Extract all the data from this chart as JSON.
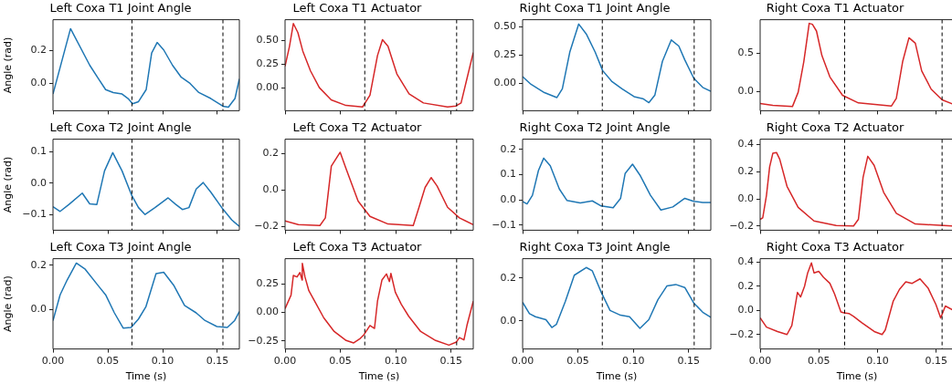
{
  "chart_data": [
    {
      "type": "line",
      "title": "Left Coxa T1 Joint Angle",
      "ylabel": "Angle (rad)",
      "xlim": [
        0,
        0.17
      ],
      "xticks": [
        {
          "value": 0,
          "label": null
        },
        {
          "value": 0.05,
          "label": null
        },
        {
          "value": 0.1,
          "label": null
        },
        {
          "value": 0.15,
          "label": null
        }
      ],
      "ylim": [
        -0.17,
        0.39
      ],
      "yticks": [
        {
          "value": 0,
          "label": "0.0"
        },
        {
          "value": 0.2,
          "label": "0.2"
        }
      ],
      "tick_labels": "y",
      "ref_lines": [
        {
          "axis": "x",
          "value": 0.072,
          "color": "#000000",
          "line_style": "dashed"
        },
        {
          "axis": "x",
          "value": 0.155,
          "color": "#000000",
          "line_style": "dashed"
        }
      ],
      "series": [
        {
          "color": "#1f77b4",
          "x": [
            0,
            0.016,
            0.0335,
            0.0415,
            0.048,
            0.055,
            0.063,
            0.0685,
            0.0726,
            0.078,
            0.085,
            0.09,
            0.095,
            0.101,
            0.109,
            0.117,
            0.125,
            0.133,
            0.144,
            0.155,
            0.16,
            0.166,
            0.17
          ],
          "values": [
            -0.067,
            0.335,
            0.11,
            0.026,
            -0.04,
            -0.058,
            -0.067,
            -0.095,
            -0.127,
            -0.114,
            -0.04,
            0.185,
            0.25,
            0.204,
            0.11,
            0.036,
            -0.002,
            -0.058,
            -0.095,
            -0.142,
            -0.148,
            -0.095,
            0.026
          ]
        }
      ]
    },
    {
      "type": "line",
      "title": "Left Coxa T1 Actuator",
      "xlim": [
        0,
        0.17
      ],
      "xticks": [
        {
          "value": 0,
          "label": null
        },
        {
          "value": 0.05,
          "label": null
        },
        {
          "value": 0.1,
          "label": null
        },
        {
          "value": 0.15,
          "label": null
        }
      ],
      "ylim": [
        -0.24,
        0.72
      ],
      "yticks": [
        {
          "value": 0,
          "label": "0.00"
        },
        {
          "value": 0.25,
          "label": "0.25"
        },
        {
          "value": 0.5,
          "label": "0.50"
        }
      ],
      "tick_labels": "y",
      "ref_lines": [
        {
          "axis": "x",
          "value": 0.072,
          "color": "#000000",
          "line_style": "dashed"
        },
        {
          "axis": "x",
          "value": 0.155,
          "color": "#000000",
          "line_style": "dashed"
        }
      ],
      "series": [
        {
          "color": "#d62728",
          "x": [
            0,
            0.004,
            0.0075,
            0.0116,
            0.016,
            0.023,
            0.031,
            0.0417,
            0.055,
            0.07,
            0.0767,
            0.0835,
            0.088,
            0.093,
            0.101,
            0.112,
            0.125,
            0.1468,
            0.1543,
            0.159,
            0.164,
            0.17
          ],
          "values": [
            0.229,
            0.439,
            0.68,
            0.584,
            0.39,
            0.18,
            0.003,
            -0.126,
            -0.184,
            -0.2,
            -0.077,
            0.342,
            0.51,
            0.439,
            0.148,
            -0.061,
            -0.158,
            -0.2,
            -0.19,
            -0.158,
            0.084,
            0.374
          ]
        }
      ]
    },
    {
      "type": "line",
      "title": "Right Coxa T1 Joint Angle",
      "xlim": [
        0,
        0.17
      ],
      "xticks": [
        {
          "value": 0,
          "label": null
        },
        {
          "value": 0.05,
          "label": null
        },
        {
          "value": 0.1,
          "label": null
        },
        {
          "value": 0.15,
          "label": null
        }
      ],
      "ylim": [
        -0.24,
        0.56
      ],
      "yticks": [
        {
          "value": 0,
          "label": "0.00"
        },
        {
          "value": 0.25,
          "label": "0.25"
        },
        {
          "value": 0.5,
          "label": "0.50"
        }
      ],
      "tick_labels": "y",
      "ref_lines": [
        {
          "axis": "x",
          "value": 0.072,
          "color": "#000000",
          "line_style": "dashed"
        },
        {
          "axis": "x",
          "value": 0.155,
          "color": "#000000",
          "line_style": "dashed"
        }
      ],
      "series": [
        {
          "color": "#1f77b4",
          "x": [
            0,
            0.0076,
            0.0197,
            0.031,
            0.0359,
            0.0426,
            0.0507,
            0.0575,
            0.0656,
            0.0723,
            0.0804,
            0.0898,
            0.1007,
            0.1087,
            0.1141,
            0.1195,
            0.1263,
            0.1343,
            0.1411,
            0.1465,
            0.1546,
            0.1627,
            0.17
          ],
          "values": [
            0.059,
            -0.008,
            -0.081,
            -0.124,
            -0.048,
            0.274,
            0.522,
            0.435,
            0.274,
            0.113,
            0.019,
            -0.048,
            -0.116,
            -0.134,
            -0.169,
            -0.102,
            0.194,
            0.382,
            0.328,
            0.207,
            0.046,
            -0.035,
            -0.07
          ]
        }
      ]
    },
    {
      "type": "line",
      "title": "Right Coxa T1 Actuator",
      "xlim": [
        0,
        0.165
      ],
      "xticks": [
        {
          "value": 0,
          "label": null
        },
        {
          "value": 0.05,
          "label": null
        },
        {
          "value": 0.1,
          "label": null
        },
        {
          "value": 0.15,
          "label": null
        }
      ],
      "ylim": [
        -0.25,
        0.94
      ],
      "yticks": [
        {
          "value": 0,
          "label": "0.0"
        },
        {
          "value": 0.5,
          "label": "0.5"
        }
      ],
      "tick_labels": "y",
      "ref_lines": [
        {
          "axis": "x",
          "value": 0.072,
          "color": "#000000",
          "line_style": "dashed"
        },
        {
          "axis": "x",
          "value": 0.155,
          "color": "#000000",
          "line_style": "dashed"
        }
      ],
      "series": [
        {
          "color": "#d62728",
          "x": [
            0,
            0.0108,
            0.0275,
            0.0324,
            0.0372,
            0.0418,
            0.0445,
            0.048,
            0.0526,
            0.0594,
            0.0702,
            0.0837,
            0.1119,
            0.116,
            0.1214,
            0.1268,
            0.1322,
            0.1376,
            0.1457,
            0.1551,
            0.165
          ],
          "values": [
            -0.156,
            -0.18,
            -0.196,
            -0.008,
            0.392,
            0.892,
            0.88,
            0.792,
            0.472,
            0.192,
            -0.048,
            -0.148,
            -0.188,
            -0.088,
            0.392,
            0.704,
            0.632,
            0.272,
            0.032,
            -0.108,
            -0.168
          ]
        }
      ]
    },
    {
      "type": "line",
      "title": "Left Coxa T2 Joint Angle",
      "ylabel": "Angle (rad)",
      "xlim": [
        0,
        0.17
      ],
      "xticks": [
        {
          "value": 0,
          "label": null
        },
        {
          "value": 0.05,
          "label": null
        },
        {
          "value": 0.1,
          "label": null
        },
        {
          "value": 0.15,
          "label": null
        }
      ],
      "ylim": [
        -0.15,
        0.14
      ],
      "yticks": [
        {
          "value": -0.1,
          "label": "−0.1"
        },
        {
          "value": 0,
          "label": "0.0"
        },
        {
          "value": 0.1,
          "label": "0.1"
        }
      ],
      "tick_labels": "y",
      "ref_lines": [
        {
          "axis": "x",
          "value": 0.072,
          "color": "#000000",
          "line_style": "dashed"
        },
        {
          "axis": "x",
          "value": 0.155,
          "color": "#000000",
          "line_style": "dashed"
        }
      ],
      "series": [
        {
          "color": "#1f77b4",
          "x": [
            0,
            0.0065,
            0.0146,
            0.0267,
            0.0335,
            0.04,
            0.047,
            0.0545,
            0.063,
            0.0718,
            0.078,
            0.084,
            0.093,
            0.105,
            0.112,
            0.118,
            0.124,
            0.1306,
            0.137,
            0.144,
            0.155,
            0.163,
            0.17
          ],
          "values": [
            -0.075,
            -0.09,
            -0.068,
            -0.032,
            -0.066,
            -0.068,
            0.039,
            0.097,
            0.039,
            -0.039,
            -0.078,
            -0.1,
            -0.078,
            -0.047,
            -0.068,
            -0.084,
            -0.078,
            -0.019,
            0.002,
            -0.029,
            -0.083,
            -0.117,
            -0.138
          ]
        }
      ]
    },
    {
      "type": "line",
      "title": "Left Coxa T2 Actuator",
      "xlim": [
        0,
        0.17
      ],
      "xticks": [
        {
          "value": 0,
          "label": null
        },
        {
          "value": 0.05,
          "label": null
        },
        {
          "value": 0.1,
          "label": null
        },
        {
          "value": 0.15,
          "label": null
        }
      ],
      "ylim": [
        -0.22,
        0.28
      ],
      "yticks": [
        {
          "value": -0.2,
          "label": "−0.2"
        },
        {
          "value": 0,
          "label": "0.0"
        },
        {
          "value": 0.2,
          "label": "0.2"
        }
      ],
      "tick_labels": "y",
      "ref_lines": [
        {
          "axis": "x",
          "value": 0.072,
          "color": "#000000",
          "line_style": "dashed"
        },
        {
          "axis": "x",
          "value": 0.155,
          "color": "#000000",
          "line_style": "dashed"
        }
      ],
      "series": [
        {
          "color": "#d62728",
          "x": [
            0,
            0.012,
            0.0315,
            0.0364,
            0.0418,
            0.0498,
            0.0552,
            0.066,
            0.0767,
            0.093,
            0.1158,
            0.121,
            0.1265,
            0.132,
            0.1373,
            0.1468,
            0.1575,
            0.17
          ],
          "values": [
            -0.169,
            -0.189,
            -0.194,
            -0.152,
            0.132,
            0.208,
            0.116,
            -0.06,
            -0.144,
            -0.186,
            -0.194,
            -0.094,
            0.015,
            0.069,
            0.023,
            -0.094,
            -0.152,
            -0.189
          ]
        }
      ]
    },
    {
      "type": "line",
      "title": "Right Coxa T2 Joint Angle",
      "xlim": [
        0,
        0.17
      ],
      "xticks": [
        {
          "value": 0,
          "label": null
        },
        {
          "value": 0.05,
          "label": null
        },
        {
          "value": 0.1,
          "label": null
        },
        {
          "value": 0.15,
          "label": null
        }
      ],
      "ylim": [
        -0.12,
        0.24
      ],
      "yticks": [
        {
          "value": -0.1,
          "label": "−0.1"
        },
        {
          "value": 0,
          "label": "0.0"
        },
        {
          "value": 0.1,
          "label": "0.1"
        },
        {
          "value": 0.2,
          "label": "0.2"
        }
      ],
      "tick_labels": "y",
      "ref_lines": [
        {
          "axis": "x",
          "value": 0.072,
          "color": "#000000",
          "line_style": "dashed"
        },
        {
          "axis": "x",
          "value": 0.155,
          "color": "#000000",
          "line_style": "dashed"
        }
      ],
      "series": [
        {
          "color": "#1f77b4",
          "x": [
            0,
            0.004,
            0.0089,
            0.0143,
            0.0191,
            0.025,
            0.0332,
            0.04,
            0.0521,
            0.063,
            0.071,
            0.0818,
            0.0885,
            0.0926,
            0.0993,
            0.106,
            0.1155,
            0.1249,
            0.1357,
            0.1465,
            0.1546,
            0.1627,
            0.17
          ],
          "values": [
            -0.006,
            -0.016,
            0.018,
            0.116,
            0.165,
            0.135,
            0.043,
            -0.002,
            -0.012,
            -0.004,
            -0.024,
            -0.031,
            0.006,
            0.104,
            0.141,
            0.098,
            0.018,
            -0.04,
            -0.028,
            0.006,
            -0.006,
            -0.01,
            -0.01
          ]
        }
      ]
    },
    {
      "type": "line",
      "title": "Right Coxa T2 Actuator",
      "xlim": [
        0,
        0.165
      ],
      "xticks": [
        {
          "value": 0,
          "label": null
        },
        {
          "value": 0.05,
          "label": null
        },
        {
          "value": 0.1,
          "label": null
        },
        {
          "value": 0.15,
          "label": null
        }
      ],
      "ylim": [
        -0.23,
        0.44
      ],
      "yticks": [
        {
          "value": -0.2,
          "label": "−0.2"
        },
        {
          "value": 0,
          "label": "0.0"
        },
        {
          "value": 0.2,
          "label": "0.2"
        },
        {
          "value": 0.4,
          "label": "0.4"
        }
      ],
      "tick_labels": "y",
      "ref_lines": [
        {
          "axis": "x",
          "value": 0.072,
          "color": "#000000",
          "line_style": "dashed"
        },
        {
          "axis": "x",
          "value": 0.155,
          "color": "#000000",
          "line_style": "dashed"
        }
      ],
      "series": [
        {
          "color": "#d62728",
          "x": [
            0,
            0.0022,
            0.0054,
            0.0081,
            0.0108,
            0.014,
            0.0167,
            0.0229,
            0.0324,
            0.0459,
            0.0648,
            0.0796,
            0.0837,
            0.0877,
            0.0917,
            0.0971,
            0.1052,
            0.116,
            0.1322,
            0.165
          ],
          "values": [
            -0.15,
            -0.139,
            0.027,
            0.237,
            0.336,
            0.341,
            0.292,
            0.093,
            -0.062,
            -0.162,
            -0.195,
            -0.199,
            -0.15,
            0.159,
            0.314,
            0.248,
            0.049,
            -0.106,
            -0.184,
            -0.199
          ]
        }
      ]
    },
    {
      "type": "line",
      "title": "Left Coxa T3 Joint Angle",
      "xlabel": "Time (s)",
      "ylabel": "Angle (rad)",
      "xlim": [
        0,
        0.17
      ],
      "xticks": [
        {
          "value": 0,
          "label": "0.00"
        },
        {
          "value": 0.05,
          "label": "0.05"
        },
        {
          "value": 0.1,
          "label": "0.10"
        },
        {
          "value": 0.15,
          "label": "0.15"
        }
      ],
      "ylim": [
        -0.18,
        0.23
      ],
      "yticks": [
        {
          "value": 0,
          "label": "0.0"
        },
        {
          "value": 0.2,
          "label": "0.2"
        }
      ],
      "ref_lines": [
        {
          "axis": "x",
          "value": 0.072,
          "color": "#000000",
          "line_style": "dashed"
        },
        {
          "axis": "x",
          "value": 0.155,
          "color": "#000000",
          "line_style": "dashed"
        }
      ],
      "series": [
        {
          "color": "#1f77b4",
          "x": [
            0,
            0.0065,
            0.013,
            0.0213,
            0.0294,
            0.0402,
            0.048,
            0.056,
            0.064,
            0.0712,
            0.078,
            0.0847,
            0.094,
            0.101,
            0.1104,
            0.12,
            0.1306,
            0.1387,
            0.1495,
            0.159,
            0.1657,
            0.17
          ],
          "values": [
            -0.051,
            0.066,
            0.134,
            0.21,
            0.182,
            0.114,
            0.066,
            -0.016,
            -0.085,
            -0.082,
            -0.044,
            0.011,
            0.162,
            0.168,
            0.107,
            0.018,
            -0.016,
            -0.051,
            -0.078,
            -0.082,
            -0.051,
            -0.01
          ]
        }
      ]
    },
    {
      "type": "line",
      "title": "Left Coxa T3 Actuator",
      "xlabel": "Time (s)",
      "xlim": [
        0,
        0.17
      ],
      "xticks": [
        {
          "value": 0,
          "label": "0.00"
        },
        {
          "value": 0.05,
          "label": "0.05"
        },
        {
          "value": 0.1,
          "label": "0.10"
        },
        {
          "value": 0.15,
          "label": "0.15"
        }
      ],
      "ylim": [
        -0.32,
        0.47
      ],
      "yticks": [
        {
          "value": -0.25,
          "label": "−0.25"
        },
        {
          "value": 0,
          "label": "0.00"
        },
        {
          "value": 0.25,
          "label": "0.25"
        }
      ],
      "ref_lines": [
        {
          "axis": "x",
          "value": 0.072,
          "color": "#000000",
          "line_style": "dashed"
        },
        {
          "axis": "x",
          "value": 0.155,
          "color": "#000000",
          "line_style": "dashed"
        }
      ],
      "series": [
        {
          "color": "#d62728",
          "x": [
            0,
            0.0054,
            0.0075,
            0.0108,
            0.0135,
            0.0154,
            0.0156,
            0.018,
            0.0215,
            0.0283,
            0.035,
            0.0444,
            0.0552,
            0.062,
            0.0673,
            0.0714,
            0.0767,
            0.0808,
            0.0835,
            0.0875,
            0.0916,
            0.0943,
            0.0956,
            0.0996,
            0.105,
            0.1117,
            0.1225,
            0.136,
            0.148,
            0.1548,
            0.1575,
            0.1616,
            0.1643,
            0.17
          ],
          "values": [
            0.032,
            0.151,
            0.323,
            0.31,
            0.349,
            0.283,
            0.429,
            0.31,
            0.19,
            0.071,
            -0.048,
            -0.167,
            -0.246,
            -0.267,
            -0.233,
            -0.193,
            -0.114,
            -0.14,
            0.098,
            0.283,
            0.336,
            0.27,
            0.341,
            0.177,
            0.071,
            -0.034,
            -0.167,
            -0.246,
            -0.286,
            -0.259,
            -0.22,
            -0.241,
            -0.114,
            0.098
          ]
        }
      ]
    },
    {
      "type": "line",
      "title": "Right Coxa T3 Joint Angle",
      "xlabel": "Time (s)",
      "xlim": [
        0,
        0.17
      ],
      "xticks": [
        {
          "value": 0,
          "label": "0.00"
        },
        {
          "value": 0.05,
          "label": "0.05"
        },
        {
          "value": 0.1,
          "label": "0.10"
        },
        {
          "value": 0.15,
          "label": "0.15"
        }
      ],
      "ylim": [
        -0.13,
        0.29
      ],
      "yticks": [
        {
          "value": 0,
          "label": "0.0"
        },
        {
          "value": 0.2,
          "label": "0.2"
        }
      ],
      "ref_lines": [
        {
          "axis": "x",
          "value": 0.072,
          "color": "#000000",
          "line_style": "dashed"
        },
        {
          "axis": "x",
          "value": 0.155,
          "color": "#000000",
          "line_style": "dashed"
        }
      ],
      "series": [
        {
          "color": "#1f77b4",
          "x": [
            0,
            0.0062,
            0.0116,
            0.0211,
            0.0264,
            0.0305,
            0.0386,
            0.0467,
            0.0575,
            0.0629,
            0.071,
            0.079,
            0.0885,
            0.0966,
            0.106,
            0.114,
            0.1222,
            0.1303,
            0.1384,
            0.1465,
            0.1546,
            0.1627,
            0.17
          ],
          "values": [
            0.087,
            0.034,
            0.02,
            0.006,
            -0.03,
            -0.016,
            0.091,
            0.213,
            0.249,
            0.234,
            0.134,
            0.049,
            0.027,
            0.02,
            -0.034,
            0.006,
            0.099,
            0.163,
            0.17,
            0.156,
            0.084,
            0.041,
            0.017
          ]
        }
      ]
    },
    {
      "type": "line",
      "title": "Right Coxa T3 Actuator",
      "xlabel": "Time (s)",
      "xlim": [
        0,
        0.165
      ],
      "xticks": [
        {
          "value": 0,
          "label": "0.00"
        },
        {
          "value": 0.05,
          "label": "0.05"
        },
        {
          "value": 0.1,
          "label": "0.10"
        },
        {
          "value": 0.15,
          "label": "0.15"
        }
      ],
      "ylim": [
        -0.32,
        0.43
      ],
      "yticks": [
        {
          "value": -0.2,
          "label": "−0.2"
        },
        {
          "value": 0,
          "label": "0.0"
        },
        {
          "value": 0.2,
          "label": "0.2"
        },
        {
          "value": 0.4,
          "label": "0.4"
        }
      ],
      "ref_lines": [
        {
          "axis": "x",
          "value": 0.072,
          "color": "#000000",
          "line_style": "dashed"
        },
        {
          "axis": "x",
          "value": 0.155,
          "color": "#000000",
          "line_style": "dashed"
        }
      ],
      "series": [
        {
          "color": "#d62728",
          "x": [
            0,
            0.0054,
            0.0148,
            0.0229,
            0.027,
            0.0318,
            0.0345,
            0.0378,
            0.0405,
            0.0437,
            0.0459,
            0.0499,
            0.054,
            0.0594,
            0.0634,
            0.0688,
            0.0715,
            0.0756,
            0.0796,
            0.0864,
            0.0972,
            0.1039,
            0.1066,
            0.1133,
            0.1187,
            0.1241,
            0.1295,
            0.1362,
            0.143,
            0.1497,
            0.1538,
            0.1578,
            0.165
          ],
          "values": [
            -0.062,
            -0.138,
            -0.175,
            -0.2,
            -0.125,
            0.15,
            0.112,
            0.2,
            0.312,
            0.395,
            0.312,
            0.325,
            0.275,
            0.225,
            0.137,
            -0.012,
            -0.02,
            -0.025,
            -0.05,
            -0.1,
            -0.175,
            -0.2,
            -0.162,
            0.075,
            0.175,
            0.238,
            0.225,
            0.262,
            0.187,
            0.05,
            -0.062,
            0.037,
            0
          ]
        }
      ]
    }
  ]
}
